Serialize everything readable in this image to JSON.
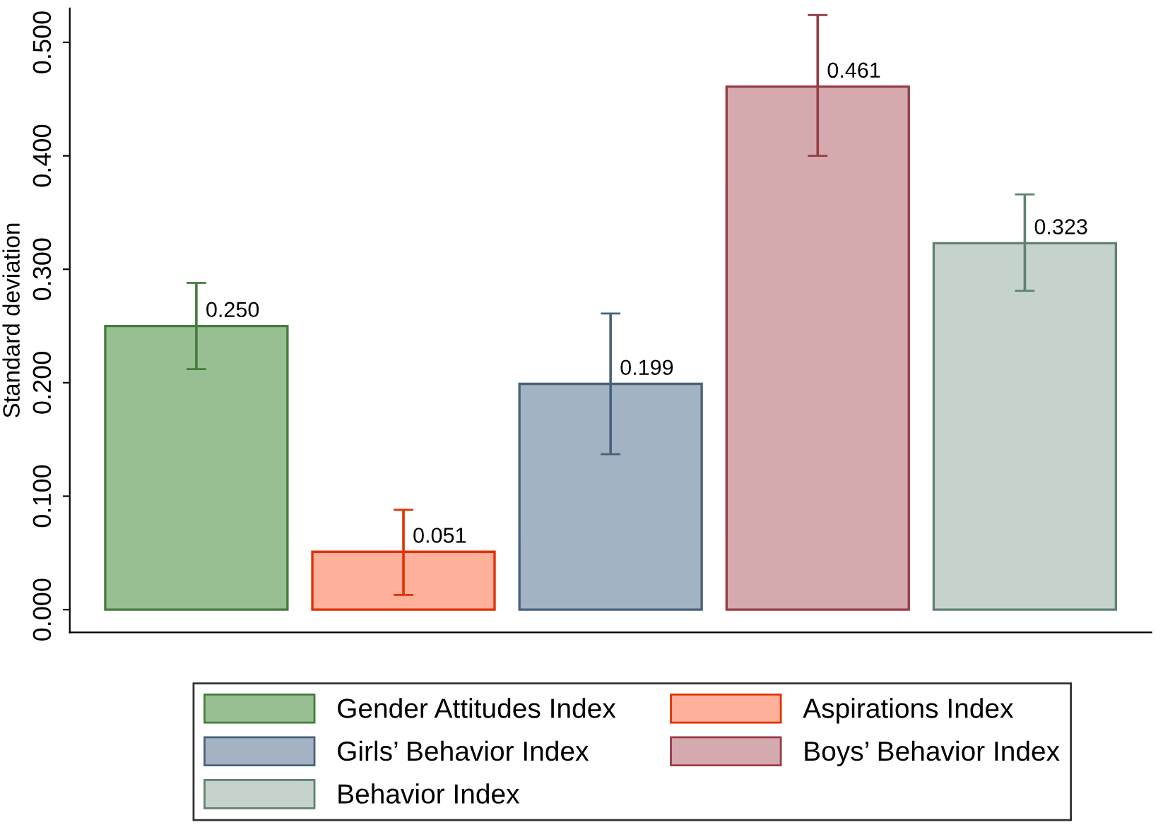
{
  "chart_data": {
    "type": "bar",
    "ylabel": "Standard deviation",
    "categories": [
      null
    ],
    "series": [
      {
        "name": "Gender Attitudes Index",
        "color": "#98bf92",
        "values": [
          0.25
        ],
        "errors": [
          [
            0.212,
            0.288
          ]
        ],
        "value_labels": [
          "0.250"
        ]
      },
      {
        "name": "Aspirations Index",
        "color": "#ffb09a",
        "values": [
          0.051
        ],
        "errors": [
          [
            0.013,
            0.088
          ]
        ],
        "value_labels": [
          "0.051"
        ]
      },
      {
        "name": "Girls’ Behavior Index",
        "color": "#a3b3c3",
        "values": [
          0.199
        ],
        "errors": [
          [
            0.137,
            0.261
          ]
        ],
        "value_labels": [
          "0.199"
        ]
      },
      {
        "name": "Boys’ Behavior Index",
        "color": "#d4aaae",
        "values": [
          0.461
        ],
        "errors": [
          [
            0.4,
            0.524
          ]
        ],
        "value_labels": [
          "0.461"
        ]
      },
      {
        "name": "Behavior Index",
        "color": "#c6d3cc",
        "values": [
          0.323
        ],
        "errors": [
          [
            0.281,
            0.366
          ]
        ],
        "value_labels": [
          "0.323"
        ]
      }
    ],
    "ylim": [
      -0.02,
      0.53
    ],
    "yticks": [
      {
        "value": 0,
        "label": "0.000"
      },
      {
        "value": 0.1,
        "label": "0.100"
      },
      {
        "value": 0.2,
        "label": "0.200"
      },
      {
        "value": 0.3,
        "label": "0.300"
      },
      {
        "value": 0.4,
        "label": "0.400"
      },
      {
        "value": 0.5,
        "label": "0.500"
      }
    ],
    "grid": false,
    "legend": "bottom"
  }
}
